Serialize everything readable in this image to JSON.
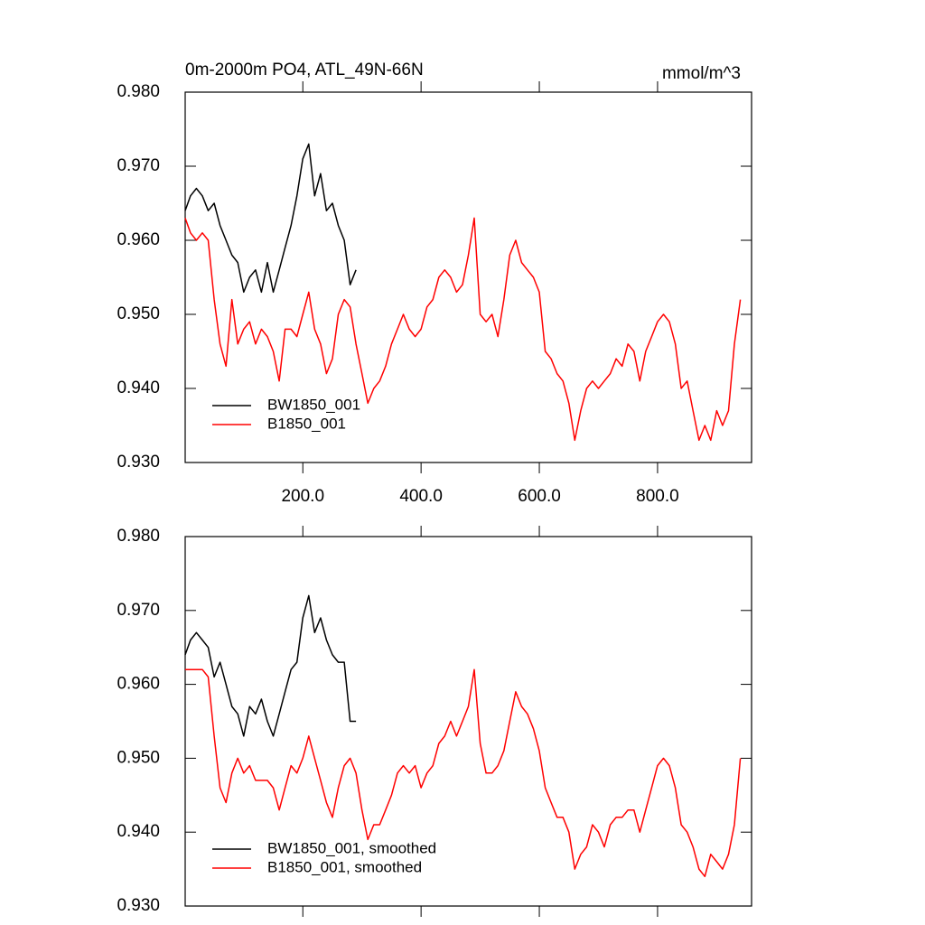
{
  "chart_data": [
    {
      "type": "line",
      "title": "0m-2000m PO4, ATL_49N-66N",
      "units": "mmol/m^3",
      "xlim": [
        1,
        959
      ],
      "ylim": [
        0.93,
        0.98
      ],
      "xticks": [
        {
          "value": 200,
          "label": "200.0"
        },
        {
          "value": 400,
          "label": "400.0"
        },
        {
          "value": 600,
          "label": "600.0"
        },
        {
          "value": 800,
          "label": "800.0"
        }
      ],
      "yticks": [
        {
          "value": 0.93,
          "label": "0.930"
        },
        {
          "value": 0.94,
          "label": "0.940"
        },
        {
          "value": 0.95,
          "label": "0.950"
        },
        {
          "value": 0.96,
          "label": "0.960"
        },
        {
          "value": 0.97,
          "label": "0.970"
        },
        {
          "value": 0.98,
          "label": "0.980"
        }
      ],
      "legend": "lower left",
      "series": [
        {
          "name": "BW1850_001",
          "color": "#000000",
          "x": [
            1,
            10,
            20,
            30,
            40,
            50,
            60,
            70,
            80,
            90,
            100,
            110,
            120,
            130,
            140,
            150,
            160,
            170,
            180,
            190,
            200,
            210,
            220,
            230,
            240,
            250,
            260,
            270,
            280,
            290
          ],
          "values": [
            0.964,
            0.966,
            0.967,
            0.966,
            0.964,
            0.965,
            0.962,
            0.96,
            0.958,
            0.957,
            0.953,
            0.955,
            0.956,
            0.953,
            0.957,
            0.953,
            0.956,
            0.959,
            0.962,
            0.966,
            0.971,
            0.973,
            0.966,
            0.969,
            0.964,
            0.965,
            0.962,
            0.96,
            0.954,
            0.956
          ]
        },
        {
          "name": "B1850_001",
          "color": "#ff0000",
          "x": [
            1,
            10,
            20,
            30,
            40,
            50,
            60,
            70,
            80,
            90,
            100,
            110,
            120,
            130,
            140,
            150,
            160,
            170,
            180,
            190,
            200,
            210,
            220,
            230,
            240,
            250,
            260,
            270,
            280,
            290,
            300,
            310,
            320,
            330,
            340,
            350,
            360,
            370,
            380,
            390,
            400,
            410,
            420,
            430,
            440,
            450,
            460,
            470,
            480,
            490,
            500,
            510,
            520,
            530,
            540,
            550,
            560,
            570,
            580,
            590,
            600,
            610,
            620,
            630,
            640,
            650,
            660,
            670,
            680,
            690,
            700,
            710,
            720,
            730,
            740,
            750,
            760,
            770,
            780,
            790,
            800,
            810,
            820,
            830,
            840,
            850,
            860,
            870,
            880,
            890,
            900,
            910,
            920,
            930,
            940
          ],
          "values": [
            0.963,
            0.961,
            0.96,
            0.961,
            0.96,
            0.952,
            0.946,
            0.943,
            0.952,
            0.946,
            0.948,
            0.949,
            0.946,
            0.948,
            0.947,
            0.945,
            0.941,
            0.948,
            0.948,
            0.947,
            0.95,
            0.953,
            0.948,
            0.946,
            0.942,
            0.944,
            0.95,
            0.952,
            0.951,
            0.946,
            0.942,
            0.938,
            0.94,
            0.941,
            0.943,
            0.946,
            0.948,
            0.95,
            0.948,
            0.947,
            0.948,
            0.951,
            0.952,
            0.955,
            0.956,
            0.955,
            0.953,
            0.954,
            0.958,
            0.963,
            0.95,
            0.949,
            0.95,
            0.947,
            0.952,
            0.958,
            0.96,
            0.957,
            0.956,
            0.955,
            0.953,
            0.945,
            0.944,
            0.942,
            0.941,
            0.938,
            0.933,
            0.937,
            0.94,
            0.941,
            0.94,
            0.941,
            0.942,
            0.944,
            0.943,
            0.946,
            0.945,
            0.941,
            0.945,
            0.947,
            0.949,
            0.95,
            0.949,
            0.946,
            0.94,
            0.941,
            0.937,
            0.933,
            0.935,
            0.933,
            0.937,
            0.935,
            0.937,
            0.946,
            0.952
          ]
        }
      ]
    },
    {
      "type": "line",
      "xlim": [
        1,
        959
      ],
      "ylim": [
        0.93,
        0.98
      ],
      "xticks": [
        200,
        400,
        600,
        800
      ],
      "yticks": [
        {
          "value": 0.93,
          "label": "0.930"
        },
        {
          "value": 0.94,
          "label": "0.940"
        },
        {
          "value": 0.95,
          "label": "0.950"
        },
        {
          "value": 0.96,
          "label": "0.960"
        },
        {
          "value": 0.97,
          "label": "0.970"
        },
        {
          "value": 0.98,
          "label": "0.980"
        }
      ],
      "legend": "lower left",
      "series": [
        {
          "name": "BW1850_001, smoothed",
          "color": "#000000",
          "x": [
            1,
            10,
            20,
            30,
            40,
            50,
            60,
            70,
            80,
            90,
            100,
            110,
            120,
            130,
            140,
            150,
            160,
            170,
            180,
            190,
            200,
            210,
            220,
            230,
            240,
            250,
            260,
            270,
            280,
            290
          ],
          "values": [
            0.964,
            0.966,
            0.967,
            0.966,
            0.965,
            0.961,
            0.963,
            0.96,
            0.957,
            0.956,
            0.953,
            0.957,
            0.956,
            0.958,
            0.955,
            0.953,
            0.956,
            0.959,
            0.962,
            0.963,
            0.969,
            0.972,
            0.967,
            0.969,
            0.966,
            0.964,
            0.963,
            0.963,
            0.955,
            0.955
          ]
        },
        {
          "name": "B1850_001, smoothed",
          "color": "#ff0000",
          "x": [
            1,
            10,
            20,
            30,
            40,
            50,
            60,
            70,
            80,
            90,
            100,
            110,
            120,
            130,
            140,
            150,
            160,
            170,
            180,
            190,
            200,
            210,
            220,
            230,
            240,
            250,
            260,
            270,
            280,
            290,
            300,
            310,
            320,
            330,
            340,
            350,
            360,
            370,
            380,
            390,
            400,
            410,
            420,
            430,
            440,
            450,
            460,
            470,
            480,
            490,
            500,
            510,
            520,
            530,
            540,
            550,
            560,
            570,
            580,
            590,
            600,
            610,
            620,
            630,
            640,
            650,
            660,
            670,
            680,
            690,
            700,
            710,
            720,
            730,
            740,
            750,
            760,
            770,
            780,
            790,
            800,
            810,
            820,
            830,
            840,
            850,
            860,
            870,
            880,
            890,
            900,
            910,
            920,
            930,
            940
          ],
          "values": [
            0.962,
            0.962,
            0.962,
            0.962,
            0.961,
            0.953,
            0.946,
            0.944,
            0.948,
            0.95,
            0.948,
            0.949,
            0.947,
            0.947,
            0.947,
            0.946,
            0.943,
            0.946,
            0.949,
            0.948,
            0.95,
            0.953,
            0.95,
            0.947,
            0.944,
            0.942,
            0.946,
            0.949,
            0.95,
            0.948,
            0.943,
            0.939,
            0.941,
            0.941,
            0.943,
            0.945,
            0.948,
            0.949,
            0.948,
            0.949,
            0.946,
            0.948,
            0.949,
            0.952,
            0.953,
            0.955,
            0.953,
            0.955,
            0.957,
            0.962,
            0.952,
            0.948,
            0.948,
            0.949,
            0.951,
            0.955,
            0.959,
            0.957,
            0.956,
            0.954,
            0.951,
            0.946,
            0.944,
            0.942,
            0.942,
            0.94,
            0.935,
            0.937,
            0.938,
            0.941,
            0.94,
            0.938,
            0.941,
            0.942,
            0.942,
            0.943,
            0.943,
            0.94,
            0.943,
            0.946,
            0.949,
            0.95,
            0.949,
            0.946,
            0.941,
            0.94,
            0.938,
            0.935,
            0.934,
            0.937,
            0.936,
            0.935,
            0.937,
            0.941,
            0.95
          ]
        }
      ]
    }
  ]
}
